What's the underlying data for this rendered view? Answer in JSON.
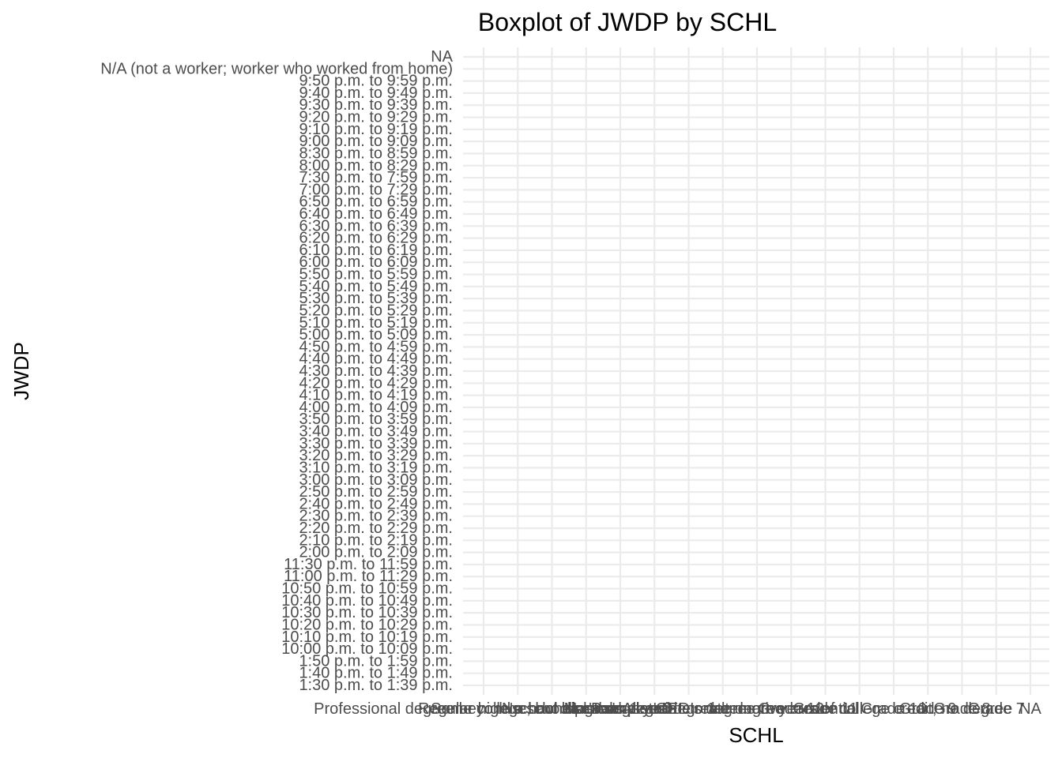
{
  "chart_data": {
    "type": "boxplot",
    "title": "Boxplot of JWDP by SCHL",
    "xlabel": "SCHL",
    "ylabel": "JWDP",
    "grid": true,
    "legend": "none",
    "x_categories": [
      "Professional degree beyond a bachelor's degree",
      "Regular high school diploma",
      "Some college, but less than 1 year",
      "No schooling completed",
      "Master's degree",
      "Bachelor's degree",
      "Associate's degree",
      "Doctorate degree",
      "GED or alternative credential",
      "Grade 12",
      "Grade 11",
      "1 or more years of college credit, no degree",
      "Grade 10",
      "Grade 9",
      "Grade 8",
      "Grade 7",
      "NA"
    ],
    "y_categories": [
      "1:30 p.m. to 1:39 p.m.",
      "1:40 p.m. to 1:49 p.m.",
      "1:50 p.m. to 1:59 p.m.",
      "10:00 p.m. to 10:09 p.m.",
      "10:10 p.m. to 10:19 p.m.",
      "10:20 p.m. to 10:29 p.m.",
      "10:30 p.m. to 10:39 p.m.",
      "10:40 p.m. to 10:49 p.m.",
      "10:50 p.m. to 10:59 p.m.",
      "11:00 p.m. to 11:29 p.m.",
      "11:30 p.m. to 11:59 p.m.",
      "2:00 p.m. to 2:09 p.m.",
      "2:10 p.m. to 2:19 p.m.",
      "2:20 p.m. to 2:29 p.m.",
      "2:30 p.m. to 2:39 p.m.",
      "2:40 p.m. to 2:49 p.m.",
      "2:50 p.m. to 2:59 p.m.",
      "3:00 p.m. to 3:09 p.m.",
      "3:10 p.m. to 3:19 p.m.",
      "3:20 p.m. to 3:29 p.m.",
      "3:30 p.m. to 3:39 p.m.",
      "3:40 p.m. to 3:49 p.m.",
      "3:50 p.m. to 3:59 p.m.",
      "4:00 p.m. to 4:09 p.m.",
      "4:10 p.m. to 4:19 p.m.",
      "4:20 p.m. to 4:29 p.m.",
      "4:30 p.m. to 4:39 p.m.",
      "4:40 p.m. to 4:49 p.m.",
      "4:50 p.m. to 4:59 p.m.",
      "5:00 p.m. to 5:09 p.m.",
      "5:10 p.m. to 5:19 p.m.",
      "5:20 p.m. to 5:29 p.m.",
      "5:30 p.m. to 5:39 p.m.",
      "5:40 p.m. to 5:49 p.m.",
      "5:50 p.m. to 5:59 p.m.",
      "6:00 p.m. to 6:09 p.m.",
      "6:10 p.m. to 6:19 p.m.",
      "6:20 p.m. to 6:29 p.m.",
      "6:30 p.m. to 6:39 p.m.",
      "6:40 p.m. to 6:49 p.m.",
      "6:50 p.m. to 6:59 p.m.",
      "7:00 p.m. to 7:29 p.m.",
      "7:30 p.m. to 7:59 p.m.",
      "8:00 p.m. to 8:29 p.m.",
      "8:30 p.m. to 8:59 p.m.",
      "9:00 p.m. to 9:09 p.m.",
      "9:10 p.m. to 9:19 p.m.",
      "9:20 p.m. to 9:29 p.m.",
      "9:30 p.m. to 9:39 p.m.",
      "9:40 p.m. to 9:49 p.m.",
      "9:50 p.m. to 9:59 p.m.",
      "N/A (not a worker; worker who worked from home)",
      "NA"
    ],
    "series": [],
    "colors": {
      "background": "#ffffff",
      "grid": "#ebebeb",
      "tick_label": "#4d4d4d",
      "title": "#000000"
    }
  }
}
